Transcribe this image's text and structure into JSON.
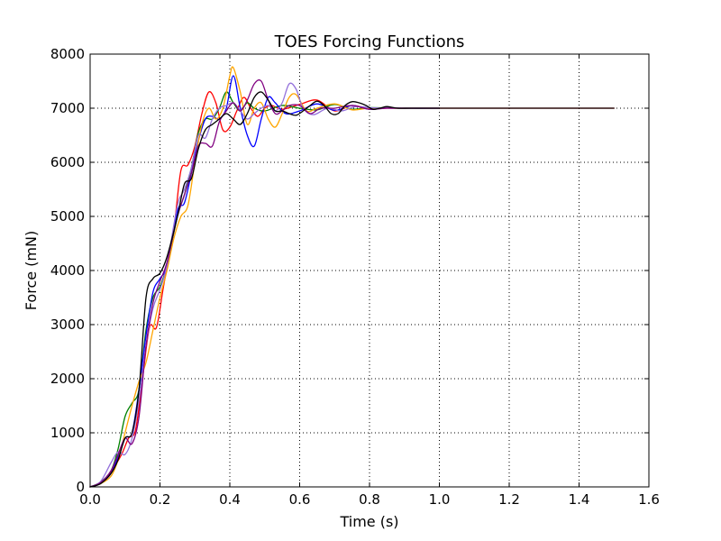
{
  "chart_data": {
    "type": "line",
    "title": "TOES Forcing Functions",
    "xlabel": "Time (s)",
    "ylabel": "Force (mN)",
    "xlim": [
      0,
      1.6
    ],
    "ylim": [
      0,
      8000
    ],
    "xticks": [
      0,
      0.2,
      0.4,
      0.6,
      0.8,
      1.0,
      1.2,
      1.4,
      1.6
    ],
    "xtick_labels": [
      "0.0",
      "0.2",
      "0.4",
      "0.6",
      "0.8",
      "1.0",
      "1.2",
      "1.4",
      "1.6"
    ],
    "yticks": [
      0,
      1000,
      2000,
      3000,
      4000,
      5000,
      6000,
      7000,
      8000
    ],
    "ytick_labels": [
      "0",
      "1000",
      "2000",
      "3000",
      "4000",
      "5000",
      "6000",
      "7000",
      "8000"
    ],
    "grid": true,
    "legend": "none",
    "series": [
      {
        "color": "#ff0000",
        "points": [
          [
            0,
            0
          ],
          [
            0.03,
            80
          ],
          [
            0.06,
            280
          ],
          [
            0.09,
            600
          ],
          [
            0.11,
            900
          ],
          [
            0.13,
            1050
          ],
          [
            0.15,
            2000
          ],
          [
            0.17,
            2950
          ],
          [
            0.19,
            2950
          ],
          [
            0.21,
            3700
          ],
          [
            0.24,
            4800
          ],
          [
            0.26,
            5850
          ],
          [
            0.28,
            5950
          ],
          [
            0.3,
            6300
          ],
          [
            0.32,
            6900
          ],
          [
            0.34,
            7300
          ],
          [
            0.36,
            7100
          ],
          [
            0.38,
            6600
          ],
          [
            0.4,
            6650
          ],
          [
            0.42,
            6950
          ],
          [
            0.44,
            7200
          ],
          [
            0.46,
            7000
          ],
          [
            0.48,
            6850
          ],
          [
            0.5,
            7000
          ],
          [
            0.52,
            7050
          ],
          [
            0.55,
            6980
          ],
          [
            0.6,
            7070
          ],
          [
            0.65,
            7150
          ],
          [
            0.7,
            6950
          ],
          [
            0.75,
            7050
          ],
          [
            0.8,
            6990
          ],
          [
            0.85,
            7000
          ],
          [
            0.9,
            7000
          ],
          [
            1.0,
            7000
          ],
          [
            1.5,
            7000
          ]
        ]
      },
      {
        "color": "#008000",
        "points": [
          [
            0,
            0
          ],
          [
            0.03,
            90
          ],
          [
            0.06,
            300
          ],
          [
            0.08,
            700
          ],
          [
            0.1,
            1300
          ],
          [
            0.12,
            1550
          ],
          [
            0.14,
            1800
          ],
          [
            0.16,
            2900
          ],
          [
            0.18,
            3500
          ],
          [
            0.2,
            3700
          ],
          [
            0.22,
            4100
          ],
          [
            0.25,
            5000
          ],
          [
            0.27,
            5400
          ],
          [
            0.29,
            5900
          ],
          [
            0.31,
            6550
          ],
          [
            0.33,
            6800
          ],
          [
            0.35,
            6800
          ],
          [
            0.37,
            7000
          ],
          [
            0.39,
            7300
          ],
          [
            0.41,
            7100
          ],
          [
            0.43,
            6950
          ],
          [
            0.45,
            7100
          ],
          [
            0.47,
            7000
          ],
          [
            0.5,
            6950
          ],
          [
            0.55,
            7050
          ],
          [
            0.6,
            7000
          ],
          [
            0.65,
            6970
          ],
          [
            0.7,
            7070
          ],
          [
            0.75,
            6980
          ],
          [
            0.8,
            7010
          ],
          [
            0.9,
            7000
          ],
          [
            1.0,
            7000
          ]
        ]
      },
      {
        "color": "#0000ff",
        "points": [
          [
            0,
            0
          ],
          [
            0.03,
            70
          ],
          [
            0.06,
            250
          ],
          [
            0.08,
            550
          ],
          [
            0.1,
            900
          ],
          [
            0.12,
            1000
          ],
          [
            0.14,
            1800
          ],
          [
            0.16,
            2800
          ],
          [
            0.18,
            3600
          ],
          [
            0.2,
            3850
          ],
          [
            0.22,
            4100
          ],
          [
            0.25,
            5100
          ],
          [
            0.27,
            5250
          ],
          [
            0.29,
            5800
          ],
          [
            0.31,
            6400
          ],
          [
            0.33,
            6800
          ],
          [
            0.35,
            6850
          ],
          [
            0.37,
            6800
          ],
          [
            0.39,
            7000
          ],
          [
            0.41,
            7600
          ],
          [
            0.43,
            7000
          ],
          [
            0.45,
            6500
          ],
          [
            0.47,
            6300
          ],
          [
            0.49,
            6800
          ],
          [
            0.51,
            7200
          ],
          [
            0.53,
            7100
          ],
          [
            0.56,
            6900
          ],
          [
            0.6,
            6950
          ],
          [
            0.65,
            7080
          ],
          [
            0.7,
            6960
          ],
          [
            0.75,
            7050
          ],
          [
            0.8,
            6980
          ],
          [
            0.85,
            7010
          ],
          [
            0.9,
            7000
          ],
          [
            1.0,
            7000
          ]
        ]
      },
      {
        "color": "#ffa500",
        "points": [
          [
            0,
            0
          ],
          [
            0.03,
            60
          ],
          [
            0.06,
            200
          ],
          [
            0.08,
            500
          ],
          [
            0.1,
            1000
          ],
          [
            0.12,
            1500
          ],
          [
            0.14,
            1950
          ],
          [
            0.16,
            2300
          ],
          [
            0.18,
            2900
          ],
          [
            0.2,
            3500
          ],
          [
            0.22,
            4000
          ],
          [
            0.24,
            4600
          ],
          [
            0.26,
            5000
          ],
          [
            0.28,
            5200
          ],
          [
            0.3,
            6000
          ],
          [
            0.32,
            6700
          ],
          [
            0.34,
            7000
          ],
          [
            0.36,
            6800
          ],
          [
            0.38,
            7000
          ],
          [
            0.4,
            7600
          ],
          [
            0.41,
            7750
          ],
          [
            0.43,
            7300
          ],
          [
            0.45,
            6700
          ],
          [
            0.47,
            7000
          ],
          [
            0.49,
            7100
          ],
          [
            0.51,
            6800
          ],
          [
            0.53,
            6650
          ],
          [
            0.55,
            6900
          ],
          [
            0.57,
            7200
          ],
          [
            0.59,
            7250
          ],
          [
            0.62,
            6950
          ],
          [
            0.65,
            7000
          ],
          [
            0.7,
            7080
          ],
          [
            0.75,
            6970
          ],
          [
            0.8,
            7000
          ],
          [
            0.9,
            7000
          ],
          [
            1.0,
            7000
          ]
        ]
      },
      {
        "color": "#9370db",
        "points": [
          [
            0,
            0
          ],
          [
            0.03,
            100
          ],
          [
            0.06,
            450
          ],
          [
            0.08,
            650
          ],
          [
            0.1,
            600
          ],
          [
            0.12,
            900
          ],
          [
            0.14,
            1600
          ],
          [
            0.16,
            2600
          ],
          [
            0.18,
            3300
          ],
          [
            0.2,
            3650
          ],
          [
            0.22,
            4100
          ],
          [
            0.25,
            5200
          ],
          [
            0.27,
            5500
          ],
          [
            0.29,
            5900
          ],
          [
            0.31,
            6500
          ],
          [
            0.33,
            6450
          ],
          [
            0.35,
            6800
          ],
          [
            0.37,
            7000
          ],
          [
            0.39,
            7050
          ],
          [
            0.41,
            7100
          ],
          [
            0.43,
            6950
          ],
          [
            0.45,
            6800
          ],
          [
            0.47,
            6900
          ],
          [
            0.49,
            7000
          ],
          [
            0.51,
            7050
          ],
          [
            0.53,
            6950
          ],
          [
            0.55,
            7100
          ],
          [
            0.57,
            7450
          ],
          [
            0.59,
            7350
          ],
          [
            0.61,
            7000
          ],
          [
            0.64,
            6880
          ],
          [
            0.68,
            7000
          ],
          [
            0.72,
            6950
          ],
          [
            0.76,
            7030
          ],
          [
            0.8,
            7010
          ],
          [
            0.85,
            7000
          ],
          [
            0.9,
            7000
          ],
          [
            1.0,
            7000
          ]
        ]
      },
      {
        "color": "#800080",
        "points": [
          [
            0,
            0
          ],
          [
            0.03,
            80
          ],
          [
            0.06,
            300
          ],
          [
            0.08,
            600
          ],
          [
            0.1,
            900
          ],
          [
            0.12,
            800
          ],
          [
            0.14,
            1300
          ],
          [
            0.16,
            2600
          ],
          [
            0.18,
            3400
          ],
          [
            0.2,
            3800
          ],
          [
            0.22,
            4150
          ],
          [
            0.25,
            5000
          ],
          [
            0.27,
            5400
          ],
          [
            0.29,
            5800
          ],
          [
            0.31,
            6300
          ],
          [
            0.33,
            6350
          ],
          [
            0.35,
            6300
          ],
          [
            0.37,
            6750
          ],
          [
            0.39,
            6950
          ],
          [
            0.41,
            7100
          ],
          [
            0.43,
            6950
          ],
          [
            0.45,
            7150
          ],
          [
            0.47,
            7450
          ],
          [
            0.49,
            7500
          ],
          [
            0.51,
            7150
          ],
          [
            0.53,
            6900
          ],
          [
            0.55,
            6950
          ],
          [
            0.57,
            7050
          ],
          [
            0.6,
            7050
          ],
          [
            0.63,
            6900
          ],
          [
            0.66,
            7000
          ],
          [
            0.7,
            7000
          ],
          [
            0.75,
            7050
          ],
          [
            0.8,
            6980
          ],
          [
            0.85,
            7000
          ],
          [
            0.9,
            7000
          ],
          [
            1.0,
            7000
          ]
        ]
      },
      {
        "color": "#000000",
        "points": [
          [
            0,
            0
          ],
          [
            0.03,
            60
          ],
          [
            0.06,
            250
          ],
          [
            0.08,
            500
          ],
          [
            0.1,
            900
          ],
          [
            0.12,
            1000
          ],
          [
            0.14,
            1800
          ],
          [
            0.16,
            3500
          ],
          [
            0.18,
            3850
          ],
          [
            0.2,
            3950
          ],
          [
            0.22,
            4250
          ],
          [
            0.25,
            5000
          ],
          [
            0.27,
            5600
          ],
          [
            0.29,
            5700
          ],
          [
            0.31,
            6250
          ],
          [
            0.33,
            6600
          ],
          [
            0.35,
            6700
          ],
          [
            0.37,
            6800
          ],
          [
            0.39,
            6900
          ],
          [
            0.41,
            6800
          ],
          [
            0.43,
            6700
          ],
          [
            0.45,
            6900
          ],
          [
            0.47,
            7200
          ],
          [
            0.49,
            7300
          ],
          [
            0.51,
            7150
          ],
          [
            0.53,
            6950
          ],
          [
            0.55,
            6950
          ],
          [
            0.57,
            6900
          ],
          [
            0.59,
            6870
          ],
          [
            0.61,
            6950
          ],
          [
            0.63,
            7050
          ],
          [
            0.65,
            7130
          ],
          [
            0.67,
            7050
          ],
          [
            0.69,
            6900
          ],
          [
            0.71,
            6900
          ],
          [
            0.73,
            7050
          ],
          [
            0.75,
            7120
          ],
          [
            0.77,
            7100
          ],
          [
            0.79,
            7050
          ],
          [
            0.81,
            6980
          ],
          [
            0.83,
            7000
          ],
          [
            0.85,
            7030
          ],
          [
            0.88,
            7000
          ],
          [
            0.92,
            7000
          ],
          [
            1.0,
            7000
          ],
          [
            1.5,
            7000
          ]
        ]
      }
    ]
  }
}
